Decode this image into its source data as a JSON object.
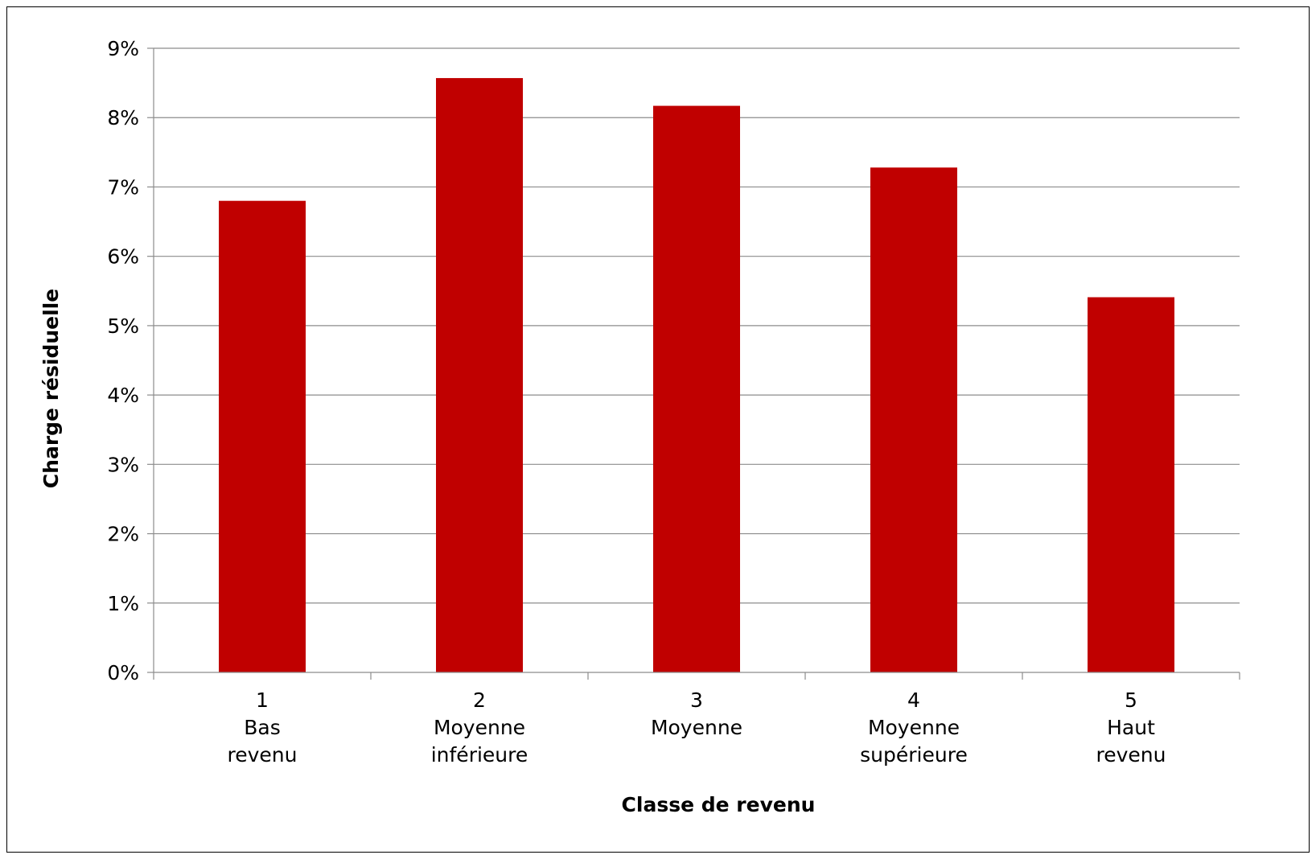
{
  "chart_data": {
    "type": "bar",
    "categories": [
      [
        "1",
        "Bas",
        "revenu"
      ],
      [
        "2",
        "Moyenne",
        "inférieure"
      ],
      [
        "3",
        "Moyenne"
      ],
      [
        "4",
        "Moyenne",
        "supérieure"
      ],
      [
        "5",
        "Haut",
        "revenu"
      ]
    ],
    "values": [
      6.8,
      8.57,
      8.17,
      7.28,
      5.41
    ],
    "y_unit": "%",
    "ylim": [
      0,
      9
    ],
    "yticks": [
      "0%",
      "1%",
      "2%",
      "3%",
      "4%",
      "5%",
      "6%",
      "7%",
      "8%",
      "9%"
    ],
    "xlabel": "Classe de revenu",
    "ylabel": "Charge résiduelle",
    "title": "",
    "grid": true,
    "legend": "none",
    "bar_color": "#c00000"
  }
}
